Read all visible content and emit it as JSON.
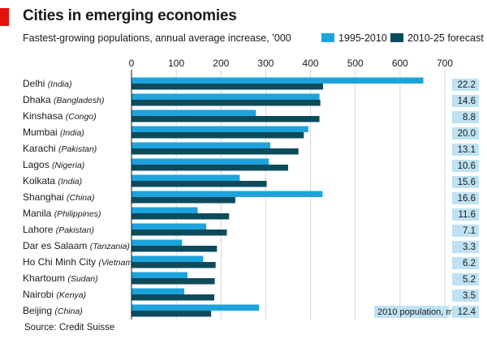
{
  "title": "Cities in emerging economies",
  "subtitle": "Fastest-growing populations, annual average increase, ’000",
  "source": "Source: Credit Suisse",
  "colors": {
    "accent_red": "#e3120b",
    "series_1": "#1da3dc",
    "series_2": "#0d4a5c",
    "population_box": "#bfe2f3",
    "gridline": "#d8d8d8"
  },
  "chart_data": {
    "type": "bar",
    "orientation": "horizontal",
    "title": "Cities in emerging economies",
    "subtitle": "Fastest-growing populations, annual average increase, ’000",
    "categories": [
      {
        "city": "Delhi",
        "country": "(India)"
      },
      {
        "city": "Dhaka",
        "country": "(Bangladesh)"
      },
      {
        "city": "Kinshasa",
        "country": "(Congo)"
      },
      {
        "city": "Mumbai",
        "country": "(India)"
      },
      {
        "city": "Karachi",
        "country": "(Pakistan)"
      },
      {
        "city": "Lagos",
        "country": "(Nigeria)"
      },
      {
        "city": "Kolkata",
        "country": "(India)"
      },
      {
        "city": "Shanghai",
        "country": "(China)"
      },
      {
        "city": "Manila",
        "country": "(Philippines)"
      },
      {
        "city": "Lahore",
        "country": "(Pakistan)"
      },
      {
        "city": "Dar es Salaam",
        "country": "(Tanzania)"
      },
      {
        "city": "Ho Chi Minh City",
        "country": "(Vietnam)"
      },
      {
        "city": "Khartoum",
        "country": "(Sudan)"
      },
      {
        "city": "Nairobi",
        "country": "(Kenya)"
      },
      {
        "city": "Beijing",
        "country": "(China)"
      }
    ],
    "series": [
      {
        "name": "1995-2010",
        "values": [
          652,
          420,
          278,
          395,
          310,
          307,
          242,
          427,
          148,
          167,
          113,
          160,
          125,
          118,
          285
        ]
      },
      {
        "name": "2010-25 forecast",
        "values": [
          428,
          422,
          420,
          385,
          373,
          350,
          302,
          232,
          218,
          213,
          191,
          188,
          186,
          185,
          178
        ]
      }
    ],
    "xlim": [
      0,
      700
    ],
    "xticks": [
      0,
      100,
      200,
      300,
      400,
      500,
      600,
      700
    ],
    "grid": true,
    "legend_position": "top-right",
    "population_label": "2010 population, m",
    "population_2010": [
      "22.2",
      "14.6",
      "8.8",
      "20.0",
      "13.1",
      "10.6",
      "15.6",
      "16.6",
      "11.6",
      "7.1",
      "3.3",
      "6.2",
      "5.2",
      "3.5",
      "12.4"
    ]
  }
}
